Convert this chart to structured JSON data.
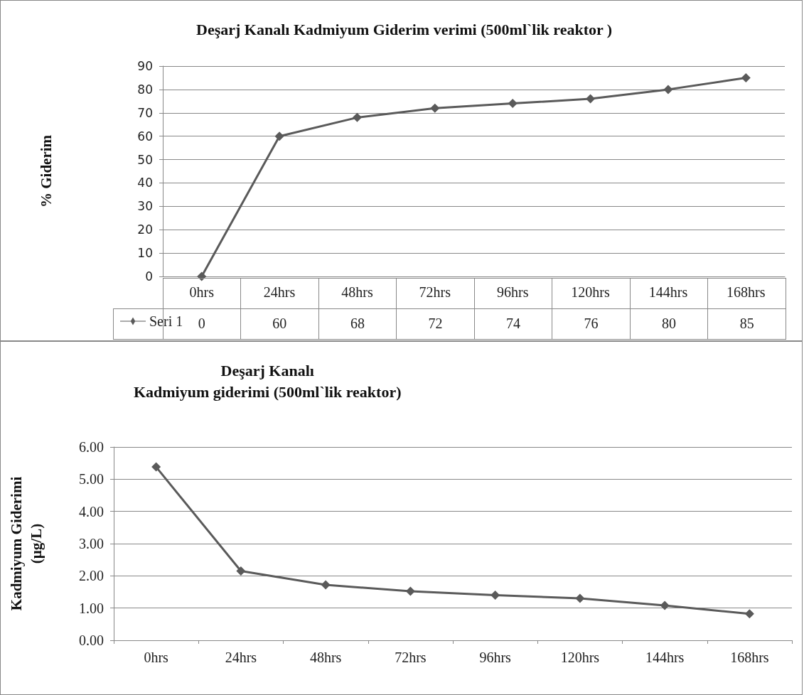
{
  "chart_data": [
    {
      "type": "line",
      "title": "Deşarj Kanalı Kadmiyum Giderim verimi (500ml`lik reaktor )",
      "ylabel": "% Giderim",
      "categories": [
        "0hrs",
        "24hrs",
        "48hrs",
        "72hrs",
        "96hrs",
        "120hrs",
        "144hrs",
        "168hrs"
      ],
      "series": [
        {
          "name": "Seri 1",
          "color": "#5a5a5a",
          "values": [
            0,
            60,
            68,
            72,
            74,
            76,
            80,
            85
          ]
        }
      ],
      "ylim": [
        0,
        90
      ],
      "yticks": [
        0,
        10,
        20,
        30,
        40,
        50,
        60,
        70,
        80,
        90
      ],
      "grid": "y",
      "legend": "bottom left",
      "marker": "diamond",
      "data_labels": true
    },
    {
      "type": "line",
      "title": "Deşarj Kanalı\nKadmiyum giderimi (500ml`lik reaktor)",
      "ylabel": "Kadmiyum Giderimi\n(µg/L)",
      "categories": [
        "0hrs",
        "24hrs",
        "48hrs",
        "72hrs",
        "96hrs",
        "120hrs",
        "144hrs",
        "168hrs"
      ],
      "series": [
        {
          "color": "#5a5a5a",
          "values": [
            5.38,
            2.15,
            1.72,
            1.52,
            1.4,
            1.3,
            1.08,
            0.82
          ]
        }
      ],
      "ylim": [
        0,
        6
      ],
      "yticks": [
        {
          "value": 0,
          "label": "0.00"
        },
        {
          "value": 1,
          "label": "1.00"
        },
        {
          "value": 2,
          "label": "2.00"
        },
        {
          "value": 3,
          "label": "3.00"
        },
        {
          "value": 4,
          "label": "4.00"
        },
        {
          "value": 5,
          "label": "5.00"
        },
        {
          "value": 6,
          "label": "6.00"
        }
      ],
      "grid": "y",
      "marker": "diamond"
    }
  ]
}
